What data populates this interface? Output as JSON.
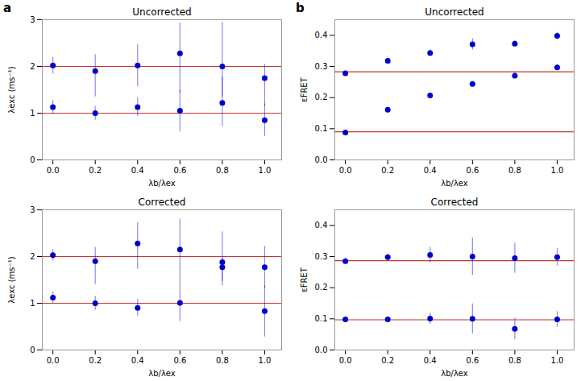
{
  "chart_data": [
    {
      "type": "scatter",
      "title": "Uncorrected",
      "annotation": "a",
      "xlabel": "λb/λex",
      "ylabel": "λexc (ms⁻¹)",
      "xlim": [
        -0.05,
        1.08
      ],
      "xticks": [
        {
          "value": 0.0,
          "label": "0.0"
        },
        0.2,
        0.4,
        0.6,
        0.8,
        {
          "value": 1.0,
          "label": "1.0"
        }
      ],
      "ylim": [
        0,
        3
      ],
      "yticks": [
        0,
        1,
        2,
        3
      ],
      "x": [
        0.0,
        0.2,
        0.4,
        0.6,
        0.8,
        1.0
      ],
      "series": [
        {
          "color": "#0000CC",
          "values": [
            2.02,
            1.9,
            2.02,
            2.28,
            2.0,
            1.75
          ],
          "error_lo": [
            0.18,
            0.55,
            0.45,
            0.85,
            0.65,
            0.6
          ],
          "error_hi": [
            0.18,
            0.35,
            0.45,
            0.65,
            0.95,
            0.3
          ]
        },
        {
          "color": "#0000CC",
          "values": [
            1.13,
            1.0,
            1.13,
            1.05,
            1.22,
            0.85
          ],
          "error_lo": [
            0.15,
            0.15,
            0.2,
            0.45,
            0.5,
            0.35
          ],
          "error_hi": [
            0.15,
            0.15,
            0.2,
            0.45,
            0.55,
            0.35
          ]
        }
      ],
      "hlines": {
        "color": "#CC3333",
        "values": [
          1.0,
          2.0
        ]
      }
    },
    {
      "type": "scatter",
      "title": "Uncorrected",
      "annotation": "b",
      "xlabel": "λb/λex",
      "ylabel": "εFRET",
      "xlim": [
        -0.05,
        1.08
      ],
      "xticks": [
        {
          "value": 0.0,
          "label": "0.0"
        },
        0.2,
        0.4,
        0.6,
        0.8,
        {
          "value": 1.0,
          "label": "1.0"
        }
      ],
      "ylim": [
        0,
        0.45
      ],
      "yticks": [
        {
          "value": 0.0,
          "label": "0.0"
        },
        0.1,
        0.2,
        0.3,
        0.4
      ],
      "x": [
        0.0,
        0.2,
        0.4,
        0.6,
        0.8,
        1.0
      ],
      "series": [
        {
          "color": "#0000CC",
          "values": [
            0.278,
            0.318,
            0.343,
            0.371,
            0.373,
            0.398
          ],
          "error_lo": [
            0.008,
            0.008,
            0.01,
            0.018,
            0.01,
            0.012
          ],
          "error_hi": [
            0.008,
            0.008,
            0.01,
            0.018,
            0.01,
            0.012
          ]
        },
        {
          "color": "#0000CC",
          "values": [
            0.088,
            0.161,
            0.207,
            0.244,
            0.27,
            0.297
          ],
          "error_lo": [
            0.005,
            0.006,
            0.007,
            0.008,
            0.009,
            0.01
          ],
          "error_hi": [
            0.005,
            0.006,
            0.007,
            0.008,
            0.009,
            0.01
          ]
        }
      ],
      "hlines": {
        "color": "#CC3333",
        "values": [
          0.09,
          0.283
        ]
      }
    },
    {
      "type": "scatter",
      "title": "Corrected",
      "xlabel": "λb/λex",
      "ylabel": "λexc (ms⁻¹)",
      "xlim": [
        -0.05,
        1.08
      ],
      "xticks": [
        {
          "value": 0.0,
          "label": "0.0"
        },
        0.2,
        0.4,
        0.6,
        0.8,
        {
          "value": 1.0,
          "label": "1.0"
        }
      ],
      "ylim": [
        0,
        3
      ],
      "yticks": [
        0,
        1,
        2,
        3
      ],
      "x": [
        0.0,
        0.2,
        0.4,
        0.6,
        0.8,
        1.0
      ],
      "series": [
        {
          "color": "#0000CC",
          "values": [
            2.03,
            1.9,
            2.28,
            2.15,
            1.88,
            1.77
          ],
          "error_lo": [
            0.12,
            0.5,
            0.55,
            0.75,
            0.4,
            0.45
          ],
          "error_hi": [
            0.12,
            0.3,
            0.45,
            0.65,
            0.65,
            0.45
          ]
        },
        {
          "color": "#0000CC",
          "values": [
            1.12,
            1.0,
            0.9,
            1.01,
            1.77,
            0.83
          ],
          "error_lo": [
            0.12,
            0.15,
            0.18,
            0.4,
            0.4,
            0.55
          ],
          "error_hi": [
            0.12,
            0.15,
            0.18,
            0.4,
            0.2,
            0.55
          ]
        }
      ],
      "hlines": {
        "color": "#CC3333",
        "values": [
          1.0,
          2.0
        ]
      }
    },
    {
      "type": "scatter",
      "title": "Corrected",
      "xlabel": "λb/λex",
      "ylabel": "εFRET",
      "xlim": [
        -0.05,
        1.08
      ],
      "xticks": [
        {
          "value": 0.0,
          "label": "0.0"
        },
        0.2,
        0.4,
        0.6,
        0.8,
        {
          "value": 1.0,
          "label": "1.0"
        }
      ],
      "ylim": [
        0,
        0.45
      ],
      "yticks": [
        {
          "value": 0.0,
          "label": "0.0"
        },
        0.1,
        0.2,
        0.3,
        0.4
      ],
      "x": [
        0.0,
        0.2,
        0.4,
        0.6,
        0.8,
        1.0
      ],
      "series": [
        {
          "color": "#0000CC",
          "values": [
            0.285,
            0.298,
            0.305,
            0.3,
            0.295,
            0.298
          ],
          "error_lo": [
            0.01,
            0.01,
            0.025,
            0.06,
            0.048,
            0.028
          ],
          "error_hi": [
            0.01,
            0.01,
            0.025,
            0.06,
            0.048,
            0.028
          ]
        },
        {
          "color": "#0000CC",
          "values": [
            0.098,
            0.098,
            0.101,
            0.1,
            0.068,
            0.098
          ],
          "error_lo": [
            0.008,
            0.008,
            0.018,
            0.048,
            0.035,
            0.025
          ],
          "error_hi": [
            0.008,
            0.008,
            0.018,
            0.048,
            0.035,
            0.025
          ]
        }
      ],
      "hlines": {
        "color": "#CC3333",
        "values": [
          0.097,
          0.287
        ]
      }
    }
  ]
}
